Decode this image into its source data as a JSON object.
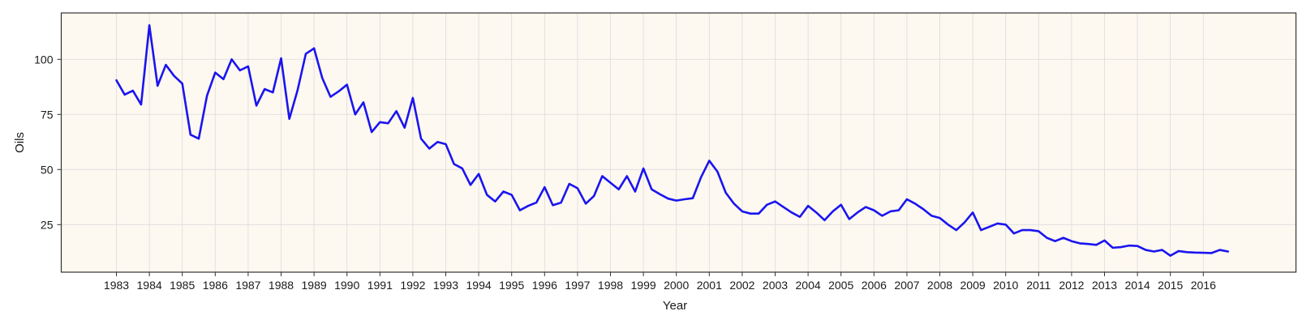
{
  "chart_data": {
    "type": "line",
    "title": "",
    "xlabel": "Year",
    "ylabel": "Oils",
    "x_tick_labels": [
      "1983",
      "1984",
      "1985",
      "1986",
      "1987",
      "1988",
      "1989",
      "1990",
      "1991",
      "1992",
      "1993",
      "1994",
      "1995",
      "1996",
      "1997",
      "1998",
      "1999",
      "2000",
      "2001",
      "2002",
      "2003",
      "2004",
      "2005",
      "2006",
      "2007",
      "2008",
      "2009",
      "2010",
      "2011",
      "2012",
      "2013",
      "2014",
      "2015",
      "2016"
    ],
    "y_tick_labels": [
      "25",
      "50",
      "75",
      "100"
    ],
    "y_ticks": [
      25,
      50,
      75,
      100
    ],
    "xlim": [
      1981.35,
      1993.3
    ],
    "ylim": [
      4.0,
      119.5
    ],
    "grid": true,
    "background_color": "#fdf8f0",
    "series": [
      {
        "color": "#1a14f0",
        "x_start": 1983.0,
        "x_step": 0.25,
        "values": [
          90.5,
          84.0,
          85.8,
          79.5,
          115.5,
          88.0,
          97.5,
          92.5,
          89.0,
          65.8,
          64.0,
          83.5,
          94.0,
          91.0,
          100.0,
          95.0,
          96.8,
          79.0,
          86.5,
          85.0,
          100.5,
          73.0,
          86.0,
          102.5,
          105.0,
          91.5,
          83.0,
          85.5,
          88.5,
          75.0,
          80.5,
          67.0,
          71.5,
          71.0,
          76.5,
          69.0,
          82.5,
          64.0,
          59.5,
          62.5,
          61.5,
          52.5,
          50.5,
          43.0,
          48.0,
          38.5,
          35.5,
          40.0,
          38.5,
          31.5,
          33.5,
          35.0,
          42.0,
          33.8,
          35.0,
          43.5,
          41.5,
          34.5,
          38.0,
          47.0,
          44.0,
          41.0,
          47.0,
          40.0,
          50.5,
          41.0,
          38.8,
          36.8,
          35.9,
          36.5,
          37.0,
          46.5,
          54.0,
          49.0,
          39.5,
          34.5,
          31.0,
          30.0,
          30.0,
          34.0,
          35.5,
          33.0,
          30.5,
          28.5,
          33.5,
          30.5,
          27.0,
          31.0,
          34.0,
          27.5,
          30.5,
          33.0,
          31.5,
          29.0,
          31.0,
          31.5,
          36.5,
          34.5,
          32.0,
          29.0,
          28.0,
          25.0,
          22.5,
          26.0,
          30.5,
          22.5,
          24.0,
          25.5,
          25.0,
          21.0,
          22.5,
          22.5,
          22.0,
          19.0,
          17.5,
          19.0,
          17.5,
          16.5,
          16.2,
          15.8,
          17.8,
          14.5,
          14.8,
          15.5,
          15.3,
          13.5,
          12.8,
          13.5,
          10.9,
          13.0,
          12.5,
          12.3,
          12.2,
          12.1,
          13.5,
          12.8
        ]
      }
    ]
  }
}
